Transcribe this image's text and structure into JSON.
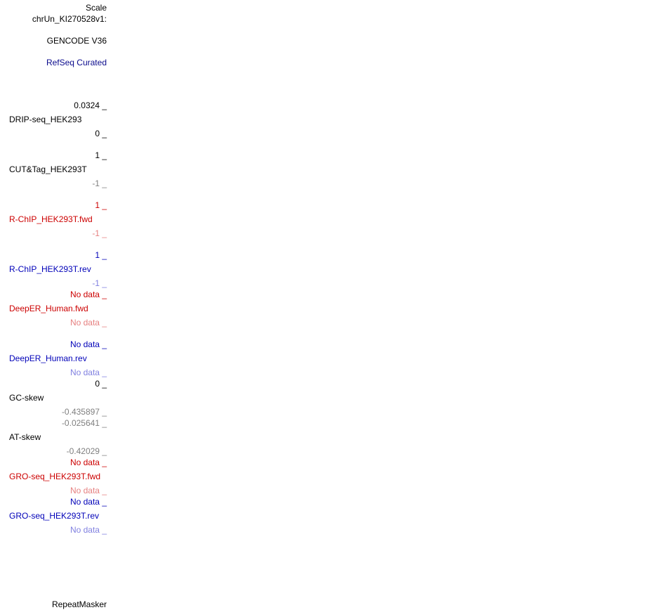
{
  "header": {
    "scale_label": "Scale",
    "chrom_label": "chrUn_KI270528v1:"
  },
  "tracks": {
    "gencode": "GENCODE V36",
    "refseq": "RefSeq Curated",
    "drip": {
      "max": "0.0324 _",
      "name": "DRIP-seq_HEK293",
      "min": "0 _"
    },
    "cuttag": {
      "max": "1 _",
      "name": "CUT&Tag_HEK293T",
      "min": "-1 _"
    },
    "rchip_fwd": {
      "max": "1 _",
      "name": "R-ChIP_HEK293T.fwd",
      "min": "-1 _"
    },
    "rchip_rev": {
      "max": "1 _",
      "name": "R-ChIP_HEK293T.rev",
      "min": "-1 _"
    },
    "deeper_fwd": {
      "max": "No data _",
      "name": "DeepER_Human.fwd",
      "min": "No data _"
    },
    "deeper_rev": {
      "max": "No data _",
      "name": "DeepER_Human.rev",
      "min": "No data _"
    },
    "gc_skew": {
      "max": "0 _",
      "name": "GC-skew",
      "min": "-0.435897 _"
    },
    "at_skew": {
      "max": "-0.025641 _",
      "name": "AT-skew",
      "min": "-0.42029 _"
    },
    "gro_fwd": {
      "max": "No data _",
      "name": "GRO-seq_HEK293T.fwd",
      "min": "No data _"
    },
    "gro_rev": {
      "max": "No data _",
      "name": "GRO-seq_HEK293T.rev",
      "min": "No data _"
    },
    "repeatmasker": "RepeatMasker"
  },
  "colors": {
    "black": "#000000",
    "gray": "#808080",
    "red": "#cc0000",
    "light_red": "#e68080",
    "blue": "#0000b8",
    "light_blue": "#8080e0"
  }
}
